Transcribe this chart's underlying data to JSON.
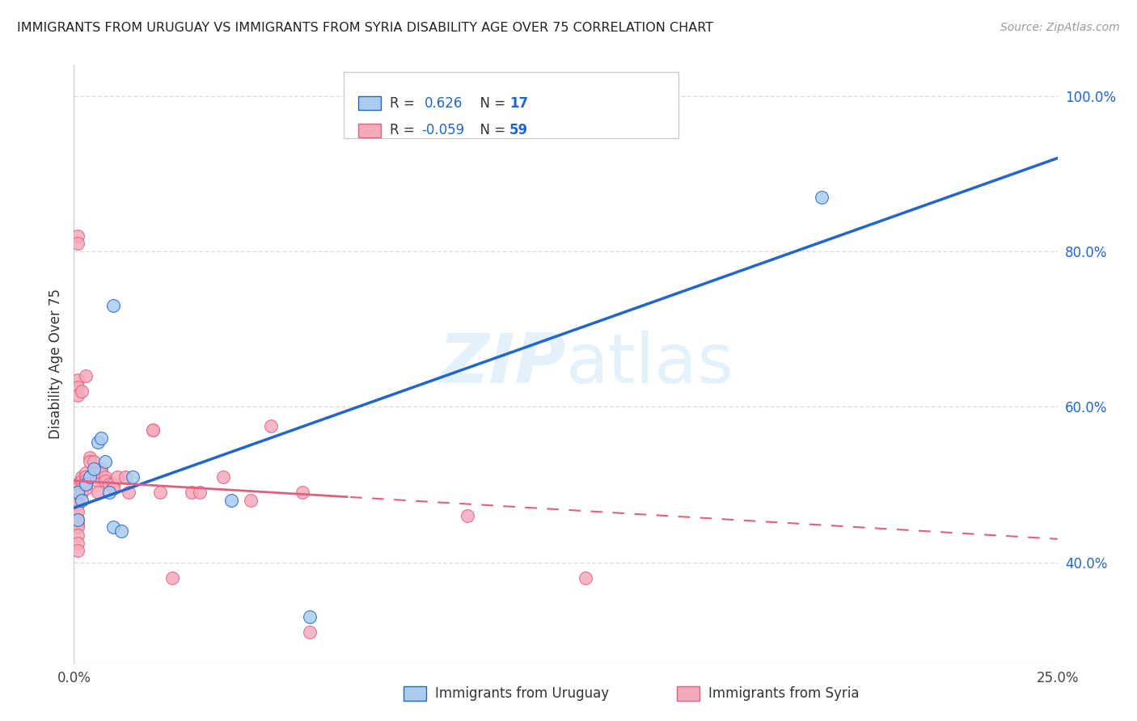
{
  "title": "IMMIGRANTS FROM URUGUAY VS IMMIGRANTS FROM SYRIA DISABILITY AGE OVER 75 CORRELATION CHART",
  "source": "Source: ZipAtlas.com",
  "ylabel": "Disability Age Over 75",
  "ylabel_right_ticks": [
    "40.0%",
    "60.0%",
    "80.0%",
    "100.0%"
  ],
  "ylabel_right_values": [
    0.4,
    0.6,
    0.8,
    1.0
  ],
  "x_min": 0.0,
  "x_max": 0.25,
  "y_min": 0.27,
  "y_max": 1.04,
  "R_uruguay": 0.626,
  "N_uruguay": 17,
  "R_syria": -0.059,
  "N_syria": 59,
  "legend_label_uruguay": "Immigrants from Uruguay",
  "legend_label_syria": "Immigrants from Syria",
  "color_uruguay": "#aaccf0",
  "color_syria": "#f5aabb",
  "trendline_color_uruguay": "#2266cc",
  "trendline_color_syria": "#e06080",
  "watermark": "ZIPatlas",
  "background_color": "#ffffff",
  "grid_color": "#cccccc",
  "uruguay_x": [
    0.001,
    0.001,
    0.002,
    0.003,
    0.004,
    0.005,
    0.006,
    0.007,
    0.008,
    0.009,
    0.01,
    0.015,
    0.04,
    0.06,
    0.19,
    0.01,
    0.012
  ],
  "uruguay_y": [
    0.49,
    0.455,
    0.48,
    0.5,
    0.51,
    0.52,
    0.555,
    0.56,
    0.53,
    0.49,
    0.73,
    0.51,
    0.48,
    0.33,
    0.87,
    0.445,
    0.44
  ],
  "syria_x": [
    0.001,
    0.001,
    0.001,
    0.001,
    0.001,
    0.001,
    0.001,
    0.001,
    0.001,
    0.001,
    0.001,
    0.001,
    0.001,
    0.001,
    0.001,
    0.001,
    0.001,
    0.001,
    0.002,
    0.002,
    0.002,
    0.002,
    0.002,
    0.003,
    0.003,
    0.003,
    0.003,
    0.003,
    0.003,
    0.004,
    0.004,
    0.005,
    0.005,
    0.006,
    0.006,
    0.006,
    0.007,
    0.007,
    0.008,
    0.008,
    0.009,
    0.01,
    0.01,
    0.011,
    0.013,
    0.014,
    0.02,
    0.02,
    0.022,
    0.025,
    0.03,
    0.032,
    0.038,
    0.045,
    0.05,
    0.058,
    0.06,
    0.1,
    0.13
  ],
  "syria_y": [
    0.5,
    0.495,
    0.49,
    0.485,
    0.48,
    0.475,
    0.635,
    0.625,
    0.465,
    0.615,
    0.455,
    0.45,
    0.445,
    0.435,
    0.425,
    0.82,
    0.81,
    0.415,
    0.51,
    0.505,
    0.62,
    0.495,
    0.49,
    0.64,
    0.515,
    0.51,
    0.505,
    0.5,
    0.495,
    0.535,
    0.53,
    0.53,
    0.515,
    0.51,
    0.505,
    0.49,
    0.52,
    0.515,
    0.51,
    0.505,
    0.5,
    0.5,
    0.495,
    0.51,
    0.51,
    0.49,
    0.57,
    0.57,
    0.49,
    0.38,
    0.49,
    0.49,
    0.51,
    0.48,
    0.575,
    0.49,
    0.31,
    0.46,
    0.38
  ]
}
